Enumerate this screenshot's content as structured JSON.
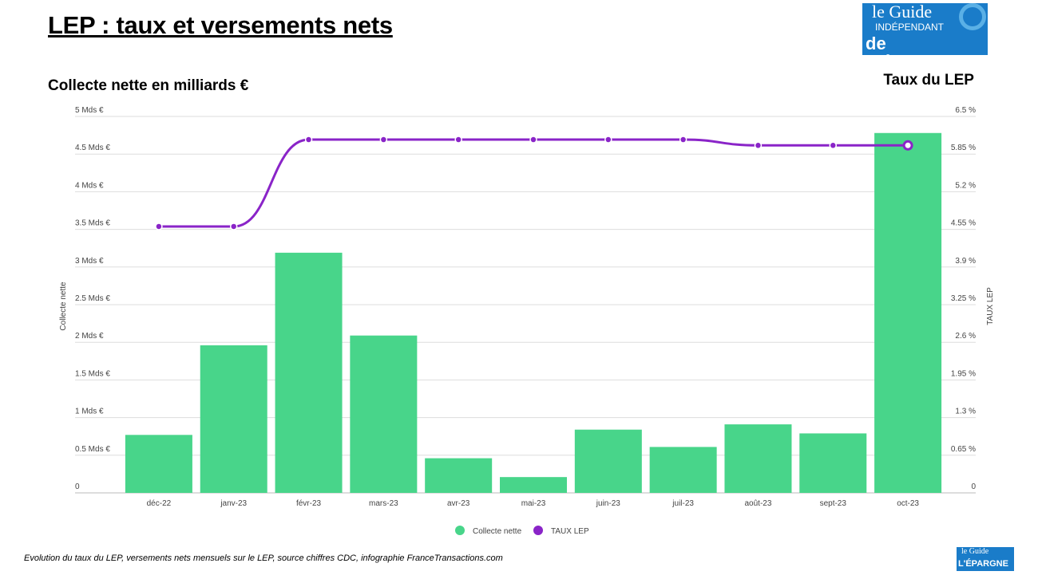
{
  "title": "LEP : taux et versements nets",
  "left_heading": "Collecte nette en milliards €",
  "right_heading": "Taux du LEP",
  "caption": "Evolution du taux du LEP, versements nets mensuels sur le LEP, source chiffres CDC, infographie FranceTransactions.com",
  "logo_text": "le Guide INDÉPENDANT de L'ÉPARGNE",
  "chart_data": {
    "type": "bar+line",
    "categories": [
      "déc-22",
      "janv-23",
      "févr-23",
      "mars-23",
      "avr-23",
      "mai-23",
      "juin-23",
      "juil-23",
      "août-23",
      "sept-23",
      "oct-23"
    ],
    "series": [
      {
        "name": "Collecte nette",
        "type": "bar",
        "axis": "left",
        "color": "#48d58a",
        "values": [
          0.77,
          1.96,
          3.19,
          2.09,
          0.46,
          0.21,
          0.84,
          0.61,
          0.91,
          0.79,
          4.78
        ]
      },
      {
        "name": "TAUX LEP",
        "type": "line",
        "axis": "right",
        "color": "#8a24c8",
        "values": [
          4.6,
          4.6,
          6.1,
          6.1,
          6.1,
          6.1,
          6.1,
          6.1,
          6.0,
          6.0,
          6.0
        ]
      }
    ],
    "y_left": {
      "label": "Collecte nette",
      "range": [
        0,
        5
      ],
      "ticks": [
        "0",
        "0.5 Mds €",
        "1 Mds €",
        "1.5 Mds €",
        "2 Mds €",
        "2.5 Mds €",
        "3 Mds €",
        "3.5 Mds €",
        "4 Mds €",
        "4.5 Mds €",
        "5 Mds €"
      ]
    },
    "y_right": {
      "label": "TAUX LEP",
      "range": [
        0,
        6.5
      ],
      "ticks": [
        "0",
        "0.65 %",
        "1.3 %",
        "1.95 %",
        "2.6 %",
        "3.25 %",
        "3.9 %",
        "4.55 %",
        "5.2 %",
        "5.85 %",
        "6.5 %"
      ]
    },
    "grid": true,
    "legend": "bottom"
  }
}
